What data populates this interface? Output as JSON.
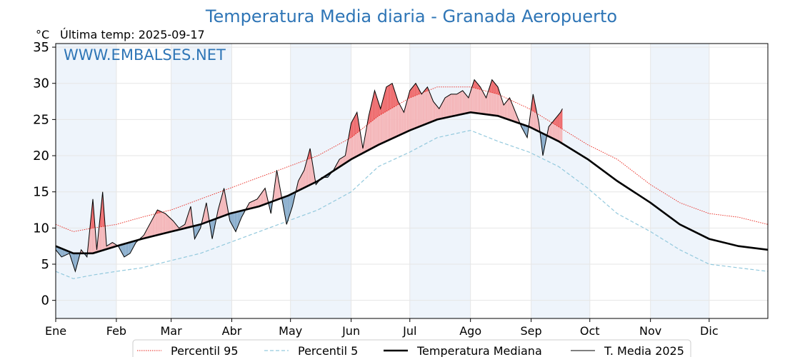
{
  "chart_data": {
    "type": "line",
    "title": "Temperatura Media diaria - Granada Aeropuerto",
    "unit": "°C",
    "last_temp_label": "Última temp: 2025-09-17",
    "watermark": "WWW.EMBALSES.NET",
    "ylim": [
      -2.5,
      35.5
    ],
    "yticks": [
      0,
      5,
      10,
      15,
      20,
      25,
      30,
      35
    ],
    "months": [
      "Ene",
      "Feb",
      "Mar",
      "Abr",
      "May",
      "Jun",
      "Jul",
      "Ago",
      "Sep",
      "Oct",
      "Nov",
      "Dic"
    ],
    "grid": true,
    "legend_position": "bottom",
    "colors": {
      "p95": "#e8231a",
      "p5": "#93c9dd",
      "median": "#000000",
      "t2025": "#000000",
      "above_fill": "#f4b6b9",
      "strong_above_fill": "#ee6b6d",
      "below_fill": "#8aaecd",
      "band": "#eef4fb",
      "title": "#2e75b6"
    },
    "series": [
      {
        "name": "Percentil 95",
        "style": "dotted",
        "points": [
          [
            1,
            10.5
          ],
          [
            10,
            9.5
          ],
          [
            20,
            10.0
          ],
          [
            32,
            10.5
          ],
          [
            45,
            11.5
          ],
          [
            60,
            12.5
          ],
          [
            75,
            14.0
          ],
          [
            90,
            15.5
          ],
          [
            105,
            17.0
          ],
          [
            120,
            18.5
          ],
          [
            135,
            20.0
          ],
          [
            152,
            22.5
          ],
          [
            166,
            25.5
          ],
          [
            182,
            28.0
          ],
          [
            196,
            29.5
          ],
          [
            213,
            29.5
          ],
          [
            227,
            28.5
          ],
          [
            243,
            26.5
          ],
          [
            258,
            24.0
          ],
          [
            273,
            21.5
          ],
          [
            288,
            19.5
          ],
          [
            305,
            16.0
          ],
          [
            320,
            13.5
          ],
          [
            335,
            12.0
          ],
          [
            350,
            11.5
          ],
          [
            365,
            10.5
          ]
        ]
      },
      {
        "name": "Percentil 5",
        "style": "dashed",
        "points": [
          [
            1,
            4.0
          ],
          [
            10,
            3.0
          ],
          [
            20,
            3.5
          ],
          [
            32,
            4.0
          ],
          [
            45,
            4.5
          ],
          [
            60,
            5.5
          ],
          [
            75,
            6.5
          ],
          [
            90,
            8.0
          ],
          [
            105,
            9.5
          ],
          [
            120,
            11.0
          ],
          [
            135,
            12.5
          ],
          [
            152,
            15.0
          ],
          [
            166,
            18.5
          ],
          [
            182,
            20.5
          ],
          [
            196,
            22.5
          ],
          [
            213,
            23.5
          ],
          [
            227,
            22.0
          ],
          [
            243,
            20.5
          ],
          [
            258,
            18.5
          ],
          [
            273,
            15.5
          ],
          [
            288,
            12.0
          ],
          [
            305,
            9.5
          ],
          [
            320,
            7.0
          ],
          [
            335,
            5.0
          ],
          [
            350,
            4.5
          ],
          [
            365,
            4.0
          ]
        ]
      },
      {
        "name": "Temperatura Mediana",
        "style": "solid-thick",
        "points": [
          [
            1,
            7.5
          ],
          [
            10,
            6.5
          ],
          [
            20,
            6.5
          ],
          [
            32,
            7.5
          ],
          [
            45,
            8.5
          ],
          [
            60,
            9.5
          ],
          [
            75,
            10.5
          ],
          [
            90,
            12.0
          ],
          [
            105,
            13.0
          ],
          [
            120,
            14.5
          ],
          [
            135,
            16.5
          ],
          [
            152,
            19.5
          ],
          [
            166,
            21.5
          ],
          [
            182,
            23.5
          ],
          [
            196,
            25.0
          ],
          [
            213,
            26.0
          ],
          [
            227,
            25.5
          ],
          [
            243,
            24.0
          ],
          [
            258,
            22.0
          ],
          [
            273,
            19.5
          ],
          [
            288,
            16.5
          ],
          [
            305,
            13.5
          ],
          [
            320,
            10.5
          ],
          [
            335,
            8.5
          ],
          [
            350,
            7.5
          ],
          [
            365,
            7.0
          ]
        ]
      },
      {
        "name": "T. Media 2025",
        "style": "solid-thin",
        "points": [
          [
            1,
            7.0
          ],
          [
            4,
            6.0
          ],
          [
            8,
            6.5
          ],
          [
            11,
            4.0
          ],
          [
            14,
            7.0
          ],
          [
            17,
            6.0
          ],
          [
            20,
            14.0
          ],
          [
            22,
            7.0
          ],
          [
            25,
            15.0
          ],
          [
            27,
            7.5
          ],
          [
            30,
            8.0
          ],
          [
            33,
            7.5
          ],
          [
            36,
            6.0
          ],
          [
            39,
            6.5
          ],
          [
            42,
            8.0
          ],
          [
            46,
            9.0
          ],
          [
            50,
            11.0
          ],
          [
            53,
            12.5
          ],
          [
            57,
            12.0
          ],
          [
            61,
            11.0
          ],
          [
            64,
            10.0
          ],
          [
            67,
            10.5
          ],
          [
            70,
            13.0
          ],
          [
            72,
            8.5
          ],
          [
            75,
            10.0
          ],
          [
            78,
            13.5
          ],
          [
            81,
            8.5
          ],
          [
            84,
            12.5
          ],
          [
            87,
            15.5
          ],
          [
            90,
            11.0
          ],
          [
            93,
            9.5
          ],
          [
            96,
            11.5
          ],
          [
            100,
            13.5
          ],
          [
            104,
            14.0
          ],
          [
            108,
            15.5
          ],
          [
            111,
            12.0
          ],
          [
            114,
            18.0
          ],
          [
            117,
            13.5
          ],
          [
            119,
            10.5
          ],
          [
            122,
            13.0
          ],
          [
            125,
            16.5
          ],
          [
            128,
            18.0
          ],
          [
            131,
            21.0
          ],
          [
            134,
            16.0
          ],
          [
            137,
            17.0
          ],
          [
            140,
            17.0
          ],
          [
            143,
            18.0
          ],
          [
            146,
            19.5
          ],
          [
            149,
            20.0
          ],
          [
            152,
            24.5
          ],
          [
            155,
            26.0
          ],
          [
            158,
            21.0
          ],
          [
            161,
            25.5
          ],
          [
            164,
            29.0
          ],
          [
            167,
            26.5
          ],
          [
            170,
            29.5
          ],
          [
            173,
            30.0
          ],
          [
            176,
            27.5
          ],
          [
            179,
            26.0
          ],
          [
            182,
            29.0
          ],
          [
            185,
            30.0
          ],
          [
            188,
            28.5
          ],
          [
            191,
            29.5
          ],
          [
            194,
            27.5
          ],
          [
            197,
            26.5
          ],
          [
            200,
            28.0
          ],
          [
            203,
            28.5
          ],
          [
            206,
            28.5
          ],
          [
            209,
            29.0
          ],
          [
            212,
            28.0
          ],
          [
            215,
            30.5
          ],
          [
            218,
            29.5
          ],
          [
            221,
            28.0
          ],
          [
            224,
            30.5
          ],
          [
            227,
            29.5
          ],
          [
            230,
            27.0
          ],
          [
            233,
            28.0
          ],
          [
            236,
            26.0
          ],
          [
            239,
            24.0
          ],
          [
            242,
            22.5
          ],
          [
            245,
            28.5
          ],
          [
            248,
            24.5
          ],
          [
            250,
            20.0
          ],
          [
            253,
            24.0
          ],
          [
            256,
            25.0
          ],
          [
            259,
            26.0
          ],
          [
            260,
            26.5
          ]
        ]
      }
    ]
  },
  "legend": {
    "p95": "Percentil 95",
    "p5": "Percentil 5",
    "median": "Temperatura Mediana",
    "t2025": "T. Media 2025"
  }
}
